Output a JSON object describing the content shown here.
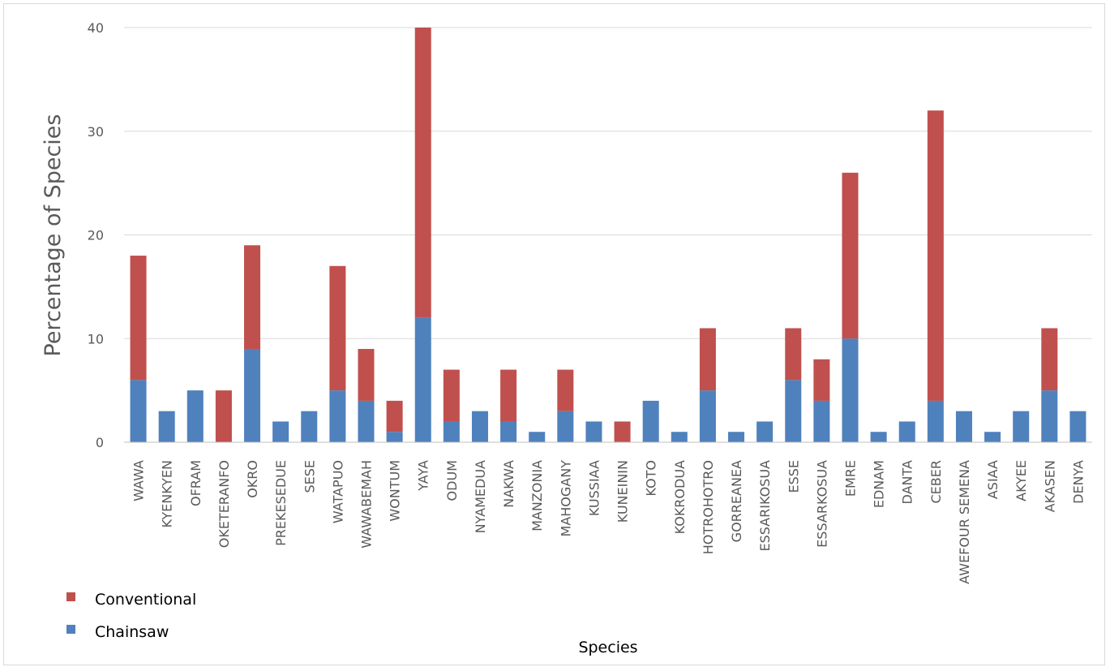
{
  "chart_data": {
    "type": "bar",
    "stacked": true,
    "xlabel": "Species",
    "ylabel": "Percentage of Species",
    "ylim": [
      0,
      40
    ],
    "yticks": [
      0,
      10,
      20,
      30,
      40
    ],
    "grid": true,
    "legend_position": "bottom-left",
    "categories": [
      "WAWA",
      "KYENKYEN",
      "OFRAM",
      "OKETERANFO",
      "OKRO",
      "PREKESEDUE",
      "SESE",
      "WATAPUO",
      "WAWABEMAH",
      "WONTUM",
      "YAYA",
      "ODUM",
      "NYAMEDUA",
      "NAKWA",
      "MANZONIA",
      "MAHOGANY",
      "KUSSIAA",
      "KUNEININ",
      "KOTO",
      "KOKRODUA",
      "HOTROHOTRO",
      "GORREANEA",
      "ESSARIKOSUA",
      "ESSE",
      "ESSARKOSUA",
      "EMRE",
      "EDNAM",
      "DANTA",
      "CEBER",
      "AWEFOUR SEMENA",
      "ASIAA",
      "AKYEE",
      "AKASEN",
      "DENYA"
    ],
    "series": [
      {
        "name": "Chainsaw",
        "color": "#4f81bd",
        "values": [
          6,
          3,
          5,
          0,
          9,
          2,
          3,
          5,
          4,
          1,
          12,
          2,
          3,
          2,
          1,
          3,
          2,
          0,
          4,
          1,
          5,
          1,
          2,
          6,
          4,
          10,
          1,
          2,
          4,
          3,
          1,
          3,
          5,
          3
        ]
      },
      {
        "name": "Conventional",
        "color": "#c0504d",
        "values": [
          12,
          0,
          0,
          5,
          10,
          0,
          0,
          12,
          5,
          3,
          28,
          5,
          0,
          5,
          0,
          4,
          0,
          2,
          0,
          0,
          6,
          0,
          0,
          5,
          4,
          16,
          0,
          0,
          28,
          0,
          0,
          0,
          6,
          0
        ]
      }
    ],
    "legend": [
      {
        "name": "Conventional",
        "color": "#c0504d"
      },
      {
        "name": "Chainsaw",
        "color": "#4f81bd"
      }
    ]
  }
}
